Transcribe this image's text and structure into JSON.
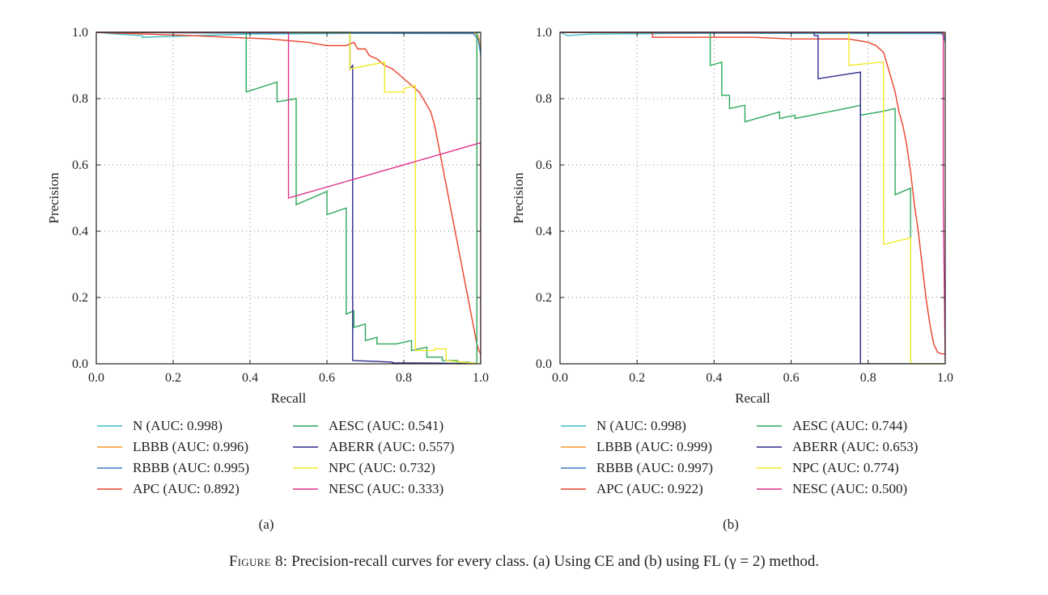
{
  "chart_data": [
    {
      "type": "line",
      "panel_label": "(a)",
      "xlabel": "Recall",
      "ylabel": "Precision",
      "xlim": [
        0,
        1
      ],
      "ylim": [
        0,
        1
      ],
      "xticks": [
        "0.0",
        "0.2",
        "0.4",
        "0.6",
        "0.8",
        "1.0"
      ],
      "yticks": [
        "0.0",
        "0.2",
        "0.4",
        "0.6",
        "0.8",
        "1.0"
      ],
      "grid": true,
      "series": [
        {
          "name": "N",
          "auc": "0.998",
          "legend": "N (AUC: 0.998)",
          "color": "#3cc0c8",
          "x": [
            0,
            0.05,
            0.12,
            0.12,
            0.4,
            0.7,
            0.99,
            0.995,
            1.0
          ],
          "y": [
            1.0,
            0.995,
            0.99,
            0.985,
            0.995,
            0.997,
            0.996,
            0.97,
            0.93
          ]
        },
        {
          "name": "LBBB",
          "auc": "0.996",
          "legend": "LBBB (AUC: 0.996)",
          "color": "#f59a2e",
          "x": [
            0,
            0.5,
            0.99,
            0.996,
            1.0
          ],
          "y": [
            1.0,
            1.0,
            0.998,
            0.98,
            0.95
          ]
        },
        {
          "name": "RBBB",
          "auc": "0.995",
          "legend": "RBBB (AUC: 0.995)",
          "color": "#3f7fbf",
          "x": [
            0,
            0.3,
            0.98,
            0.993,
            1.0
          ],
          "y": [
            1.0,
            0.998,
            0.997,
            0.98,
            0.94
          ]
        },
        {
          "name": "APC",
          "auc": "0.892",
          "legend": "APC (AUC: 0.892)",
          "color": "#e8412a",
          "x": [
            0,
            0.25,
            0.45,
            0.55,
            0.6,
            0.65,
            0.67,
            0.68,
            0.7,
            0.71,
            0.73,
            0.75,
            0.77,
            0.78,
            0.8,
            0.82,
            0.84,
            0.85,
            0.87,
            0.88,
            0.89,
            0.9,
            0.91,
            0.92,
            0.93,
            0.94,
            0.95,
            0.96,
            0.97,
            0.98,
            0.99,
            0.995,
            1.0
          ],
          "y": [
            1.0,
            0.99,
            0.98,
            0.97,
            0.96,
            0.96,
            0.97,
            0.95,
            0.95,
            0.93,
            0.92,
            0.9,
            0.89,
            0.88,
            0.86,
            0.84,
            0.82,
            0.8,
            0.76,
            0.72,
            0.66,
            0.6,
            0.54,
            0.48,
            0.42,
            0.36,
            0.3,
            0.24,
            0.18,
            0.12,
            0.06,
            0.04,
            0.03
          ]
        },
        {
          "name": "AESC",
          "auc": "0.541",
          "legend": "AESC (AUC: 0.541)",
          "color": "#2da85a",
          "x": [
            0,
            0.39,
            0.39,
            0.47,
            0.47,
            0.52,
            0.52,
            0.6,
            0.6,
            0.65,
            0.65,
            0.67,
            0.67,
            0.7,
            0.7,
            0.73,
            0.73,
            0.78,
            0.78,
            0.82,
            0.82,
            0.86,
            0.86,
            0.9,
            0.9,
            0.94,
            0.94,
            0.97,
            0.97,
            0.99,
            0.99,
            1.0
          ],
          "y": [
            1.0,
            1.0,
            0.82,
            0.85,
            0.79,
            0.8,
            0.48,
            0.52,
            0.45,
            0.47,
            0.15,
            0.16,
            0.11,
            0.12,
            0.07,
            0.08,
            0.06,
            0.06,
            0.06,
            0.07,
            0.04,
            0.05,
            0.02,
            0.02,
            0.01,
            0.01,
            0.005,
            0.005,
            0.003,
            0.002,
            1.0,
            1.0
          ]
        },
        {
          "name": "ABERR",
          "auc": "0.557",
          "legend": "ABERR (AUC: 0.557)",
          "color": "#2e2c8c",
          "x": [
            0,
            0.66,
            0.66,
            0.667,
            0.667,
            0.77,
            0.77,
            0.9,
            1.0
          ],
          "y": [
            1.0,
            1.0,
            0.89,
            0.9,
            0.01,
            0.005,
            0.003,
            0.002,
            0.0
          ]
        },
        {
          "name": "NPC",
          "auc": "0.732",
          "legend": "NPC (AUC: 0.732)",
          "color": "#f2ea2a",
          "x": [
            0,
            0.66,
            0.66,
            0.75,
            0.75,
            0.8,
            0.8,
            0.83,
            0.83,
            0.84,
            0.84,
            0.88,
            0.88,
            0.91,
            0.91,
            0.95,
            1.0
          ],
          "y": [
            1.0,
            1.0,
            0.89,
            0.91,
            0.82,
            0.82,
            0.83,
            0.84,
            0.04,
            0.04,
            0.04,
            0.04,
            0.045,
            0.045,
            0.01,
            0.005,
            0.0
          ]
        },
        {
          "name": "NESC",
          "auc": "0.333",
          "legend": "NESC (AUC: 0.333)",
          "color": "#de2f8a",
          "x": [
            0,
            0.5,
            0.5,
            1.0,
            1.0
          ],
          "y": [
            1.0,
            1.0,
            0.5,
            0.667,
            0.0
          ]
        }
      ]
    },
    {
      "type": "line",
      "panel_label": "(b)",
      "xlabel": "Recall",
      "ylabel": "Precision",
      "xlim": [
        0,
        1
      ],
      "ylim": [
        0,
        1
      ],
      "xticks": [
        "0.0",
        "0.2",
        "0.4",
        "0.6",
        "0.8",
        "1.0"
      ],
      "yticks": [
        "0.0",
        "0.2",
        "0.4",
        "0.6",
        "0.8",
        "1.0"
      ],
      "grid": true,
      "series": [
        {
          "name": "N",
          "auc": "0.998",
          "legend": "N (AUC: 0.998)",
          "color": "#3cc0c8",
          "x": [
            0,
            0.02,
            0.08,
            0.4,
            0.99,
            0.995,
            1.0
          ],
          "y": [
            1.0,
            0.99,
            0.995,
            0.997,
            0.996,
            0.99,
            0.97
          ]
        },
        {
          "name": "LBBB",
          "auc": "0.999",
          "legend": "LBBB (AUC: 0.999)",
          "color": "#f59a2e",
          "x": [
            0,
            0.5,
            0.995,
            1.0
          ],
          "y": [
            1.0,
            1.0,
            0.999,
            0.99
          ]
        },
        {
          "name": "RBBB",
          "auc": "0.997",
          "legend": "RBBB (AUC: 0.997)",
          "color": "#3f7fbf",
          "x": [
            0,
            0.3,
            0.99,
            0.997,
            1.0
          ],
          "y": [
            1.0,
            0.998,
            0.998,
            0.99,
            0.97
          ]
        },
        {
          "name": "APC",
          "auc": "0.922",
          "legend": "APC (AUC: 0.922)",
          "color": "#e8412a",
          "x": [
            0,
            0.24,
            0.24,
            0.5,
            0.6,
            0.75,
            0.8,
            0.82,
            0.84,
            0.85,
            0.86,
            0.87,
            0.88,
            0.89,
            0.9,
            0.91,
            0.92,
            0.93,
            0.94,
            0.95,
            0.96,
            0.97,
            0.98,
            0.99,
            1.0
          ],
          "y": [
            1.0,
            1.0,
            0.985,
            0.985,
            0.98,
            0.98,
            0.97,
            0.96,
            0.94,
            0.9,
            0.86,
            0.82,
            0.76,
            0.72,
            0.66,
            0.58,
            0.48,
            0.4,
            0.3,
            0.2,
            0.12,
            0.06,
            0.035,
            0.03,
            0.03
          ]
        },
        {
          "name": "AESC",
          "auc": "0.744",
          "legend": "AESC (AUC: 0.744)",
          "color": "#2da85a",
          "x": [
            0,
            0.39,
            0.39,
            0.42,
            0.42,
            0.44,
            0.44,
            0.48,
            0.48,
            0.57,
            0.57,
            0.61,
            0.61,
            0.74,
            0.78,
            0.78,
            0.83,
            0.87,
            0.87,
            0.91,
            0.91,
            1.0
          ],
          "y": [
            1.0,
            1.0,
            0.9,
            0.91,
            0.81,
            0.81,
            0.77,
            0.78,
            0.73,
            0.76,
            0.74,
            0.75,
            0.74,
            0.77,
            0.78,
            0.75,
            0.76,
            0.77,
            0.51,
            0.53,
            0.0,
            0.0
          ]
        },
        {
          "name": "ABERR",
          "auc": "0.653",
          "legend": "ABERR (AUC: 0.653)",
          "color": "#2e2c8c",
          "x": [
            0,
            0.66,
            0.66,
            0.67,
            0.67,
            0.78,
            0.78,
            1.0
          ],
          "y": [
            1.0,
            1.0,
            0.99,
            0.99,
            0.86,
            0.88,
            0.0,
            0.0
          ]
        },
        {
          "name": "NPC",
          "auc": "0.774",
          "legend": "NPC (AUC: 0.774)",
          "color": "#f2ea2a",
          "x": [
            0,
            0.75,
            0.75,
            0.83,
            0.83,
            0.84,
            0.84,
            0.91,
            0.91,
            1.0
          ],
          "y": [
            1.0,
            1.0,
            0.9,
            0.91,
            0.91,
            0.91,
            0.36,
            0.38,
            0.0,
            0.0
          ]
        },
        {
          "name": "NESC",
          "auc": "0.500",
          "legend": "NESC (AUC: 0.500)",
          "color": "#de2f8a",
          "x": [
            0,
            0.995,
            0.995,
            1.0
          ],
          "y": [
            1.0,
            1.0,
            0.5,
            0.0
          ]
        }
      ]
    }
  ],
  "caption": {
    "figure_label": "Figure 8:",
    "text": "Precision-recall curves for every class. (a) Using CE and (b) using FL (γ = 2) method."
  }
}
